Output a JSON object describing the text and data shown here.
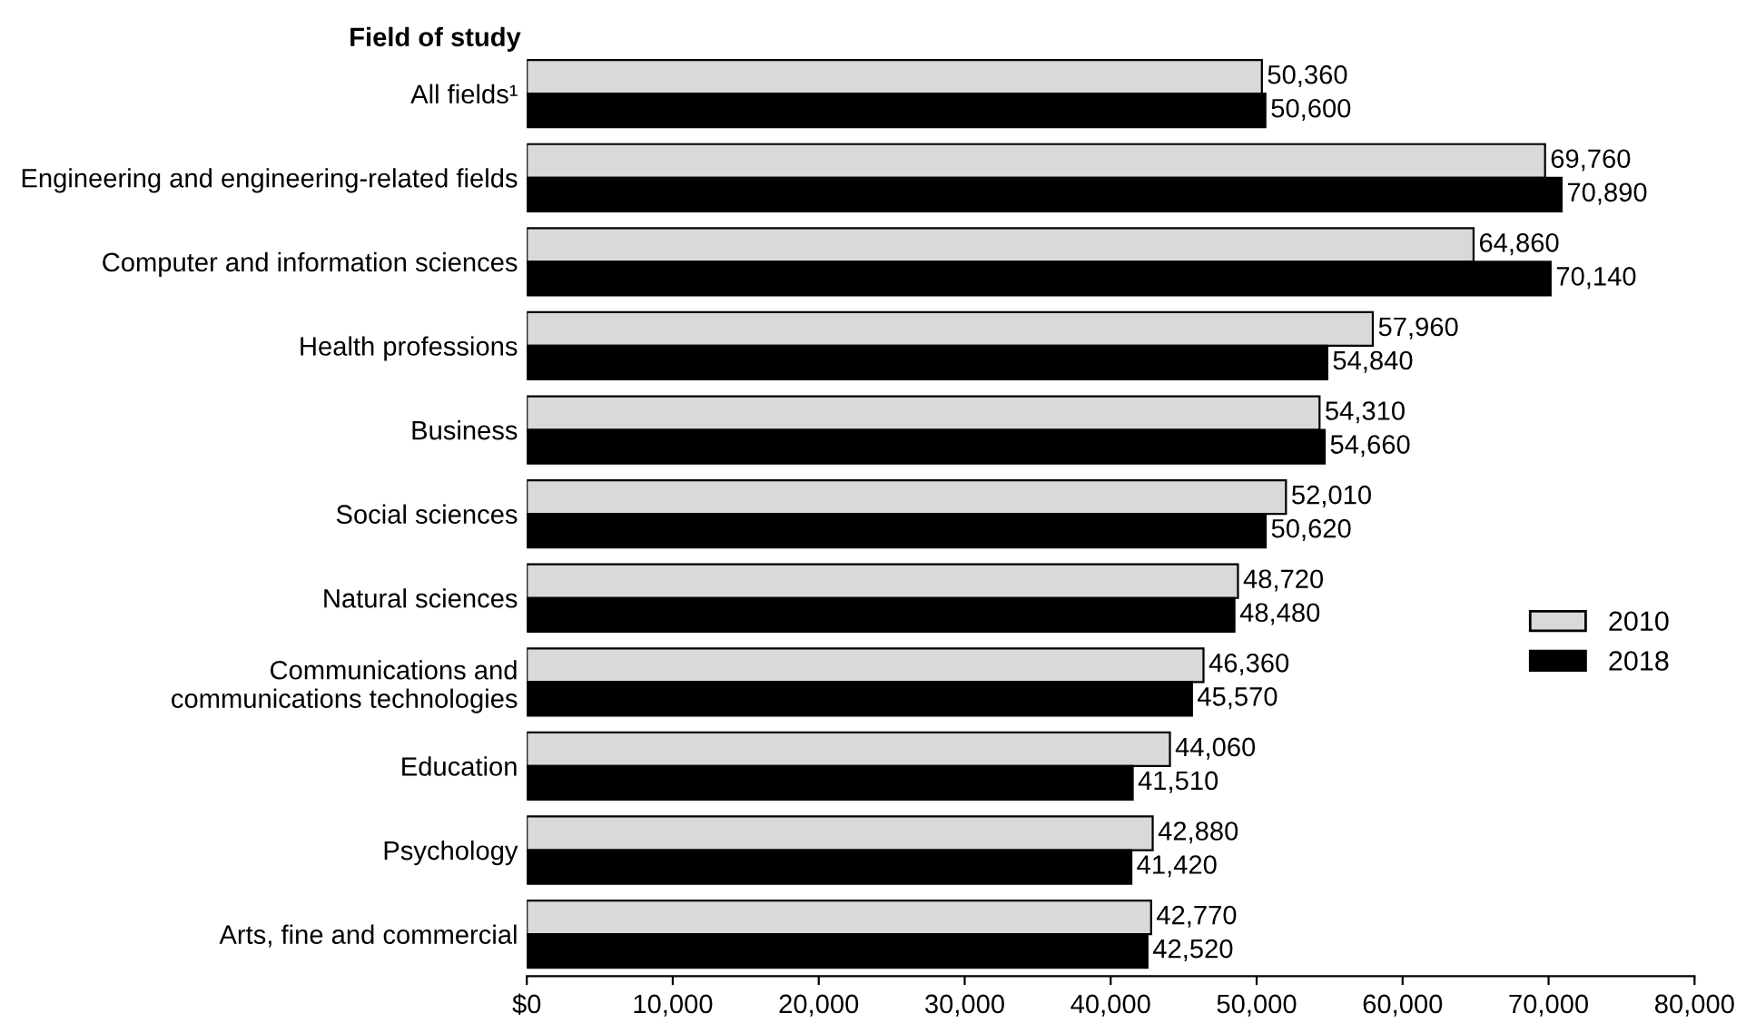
{
  "chart_data": {
    "type": "bar",
    "orientation": "horizontal",
    "ylabel": "Field of study",
    "categories": [
      "All fields¹",
      "Engineering and engineering-related fields",
      "Computer and information sciences",
      "Health professions",
      "Business",
      "Social sciences",
      "Natural sciences",
      "Communications and\ncommunications technologies",
      "Education",
      "Psychology",
      "Arts, fine and commercial"
    ],
    "series": [
      {
        "name": "2010",
        "color": "#d9d9d9",
        "values": [
          50360,
          69760,
          64860,
          57960,
          54310,
          52010,
          48720,
          46360,
          44060,
          42880,
          42770
        ],
        "value_labels": [
          "50,360",
          "69,760",
          "64,860",
          "57,960",
          "54,310",
          "52,010",
          "48,720",
          "46,360",
          "44,060",
          "42,880",
          "42,770"
        ]
      },
      {
        "name": "2018",
        "color": "#000000",
        "values": [
          50600,
          70890,
          70140,
          54840,
          54660,
          50620,
          48480,
          45570,
          41510,
          41420,
          42520
        ],
        "value_labels": [
          "50,600",
          "70,890",
          "70,140",
          "54,840",
          "54,660",
          "50,620",
          "48,480",
          "45,570",
          "41,510",
          "41,420",
          "42,520"
        ]
      }
    ],
    "xlim": [
      0,
      80000
    ],
    "xticks": [
      {
        "value": 0,
        "label": "$0"
      },
      {
        "value": 10000,
        "label": "10,000"
      },
      {
        "value": 20000,
        "label": "20,000"
      },
      {
        "value": 30000,
        "label": "30,000"
      },
      {
        "value": 40000,
        "label": "40,000"
      },
      {
        "value": 50000,
        "label": "50,000"
      },
      {
        "value": 60000,
        "label": "60,000"
      },
      {
        "value": 70000,
        "label": "70,000"
      },
      {
        "value": 80000,
        "label": "80,000"
      }
    ],
    "grid": false,
    "legend": "right"
  }
}
